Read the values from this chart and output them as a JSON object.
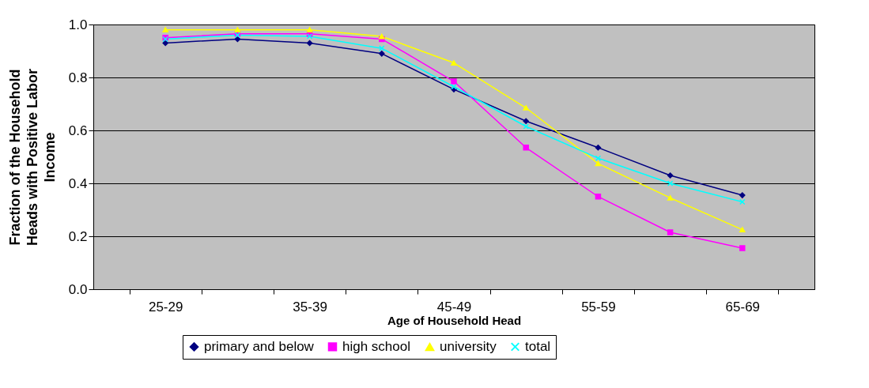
{
  "chart_data": {
    "type": "line",
    "xlabel": "Age of Household Head",
    "ylabel": "Fraction of the Household Heads with Positive Labor Income",
    "categories": [
      "25-29",
      null,
      "35-39",
      null,
      "45-49",
      null,
      "55-59",
      null,
      "65-69"
    ],
    "series": [
      {
        "name": "primary and below",
        "color": "#000080",
        "marker": "diamond",
        "values": [
          0.93,
          0.945,
          0.93,
          0.89,
          0.755,
          0.635,
          0.535,
          0.43,
          0.355
        ]
      },
      {
        "name": "high school",
        "color": "#ff00ff",
        "marker": "square",
        "values": [
          0.95,
          0.965,
          0.965,
          0.945,
          0.785,
          0.535,
          0.35,
          0.215,
          0.155
        ]
      },
      {
        "name": "university",
        "color": "#ffff00",
        "marker": "triangle",
        "values": [
          0.98,
          0.98,
          0.98,
          0.955,
          0.855,
          0.685,
          0.475,
          0.345,
          0.225
        ]
      },
      {
        "name": "total",
        "color": "#00ffff",
        "marker": "cross",
        "values": [
          0.945,
          0.96,
          0.955,
          0.91,
          0.765,
          0.615,
          0.495,
          0.4,
          0.33
        ]
      }
    ],
    "ylim": [
      0,
      1
    ],
    "yticks": [
      {
        "value": 0,
        "label": "0.0"
      },
      {
        "value": 0.2,
        "label": "0.2"
      },
      {
        "value": 0.4,
        "label": "0.4"
      },
      {
        "value": 0.6,
        "label": "0.6"
      },
      {
        "value": 0.8,
        "label": "0.8"
      },
      {
        "value": 1,
        "label": "1.0"
      }
    ],
    "grid": "y",
    "legend": "bottom"
  }
}
